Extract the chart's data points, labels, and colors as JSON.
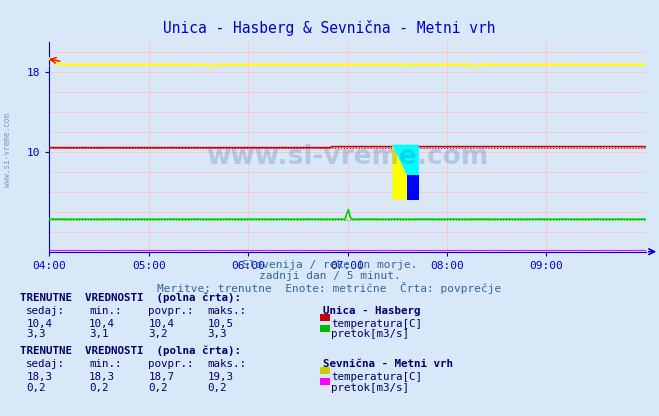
{
  "title": "Unica - Hasberg & Sevnična - Metni vrh",
  "bg_color": "#d8e8f8",
  "plot_bg_color": "#d8e8f8",
  "x_ticks": [
    "04:00",
    "05:00",
    "06:00",
    "07:00",
    "08:00",
    "09:00"
  ],
  "n_points": 360,
  "y_min": 0,
  "y_max": 21,
  "y_ticks": [
    10,
    18
  ],
  "grid_major_color": "#ffaaaa",
  "grid_minor_color": "#ffdddd",
  "subtitle1": "Slovenija / reke in morje.",
  "subtitle2": "zadnji dan / 5 minut.",
  "subtitle3": "Meritve: trenutne  Enote: metrične  Črta: povprečje",
  "watermark": "www.si-vreme.com",
  "unica_temp_color": "#cc0000",
  "unica_temp_avg": 10.4,
  "unica_pretok_color": "#00cc00",
  "unica_pretok_avg": 3.2,
  "sevnicna_temp_color": "#ffff00",
  "sevnicna_temp_avg": 18.7,
  "sevnicna_pretok_color": "#ff00ff",
  "sevnicna_pretok_avg": 0.2,
  "axis_color": "#0000cc",
  "text_color_dark": "#000066",
  "text_color_blue": "#336699",
  "table1_header": "TRENUTNE  VREDNOSTI  (polna črta):",
  "table1_cols": "  sedaj:     min.:    povpr.:    maks.:",
  "table1_station": "Unica - Hasberg",
  "table1_row1_vals": "    10,4      10,4      10,4      10,5",
  "table1_row1_color": "#cc0000",
  "table1_row1_label": "temperatura[C]",
  "table1_row2_vals": "     3,3       3,1       3,2       3,3",
  "table1_row2_color": "#00bb00",
  "table1_row2_label": "pretok[m3/s]",
  "table2_header": "TRENUTNE  VREDNOSTI  (polna črta):",
  "table2_cols": "  sedaj:     min.:    povpr.:    maks.:",
  "table2_station": "Sevnična - Metni vrh",
  "table2_row1_vals": "    18,3      18,3      18,7      19,3",
  "table2_row1_color": "#cccc00",
  "table2_row1_label": "temperatura[C]",
  "table2_row2_vals": "     0,2       0,2       0,2       0,2",
  "table2_row2_color": "#ff00ff",
  "table2_row2_label": "pretok[m3/s]"
}
